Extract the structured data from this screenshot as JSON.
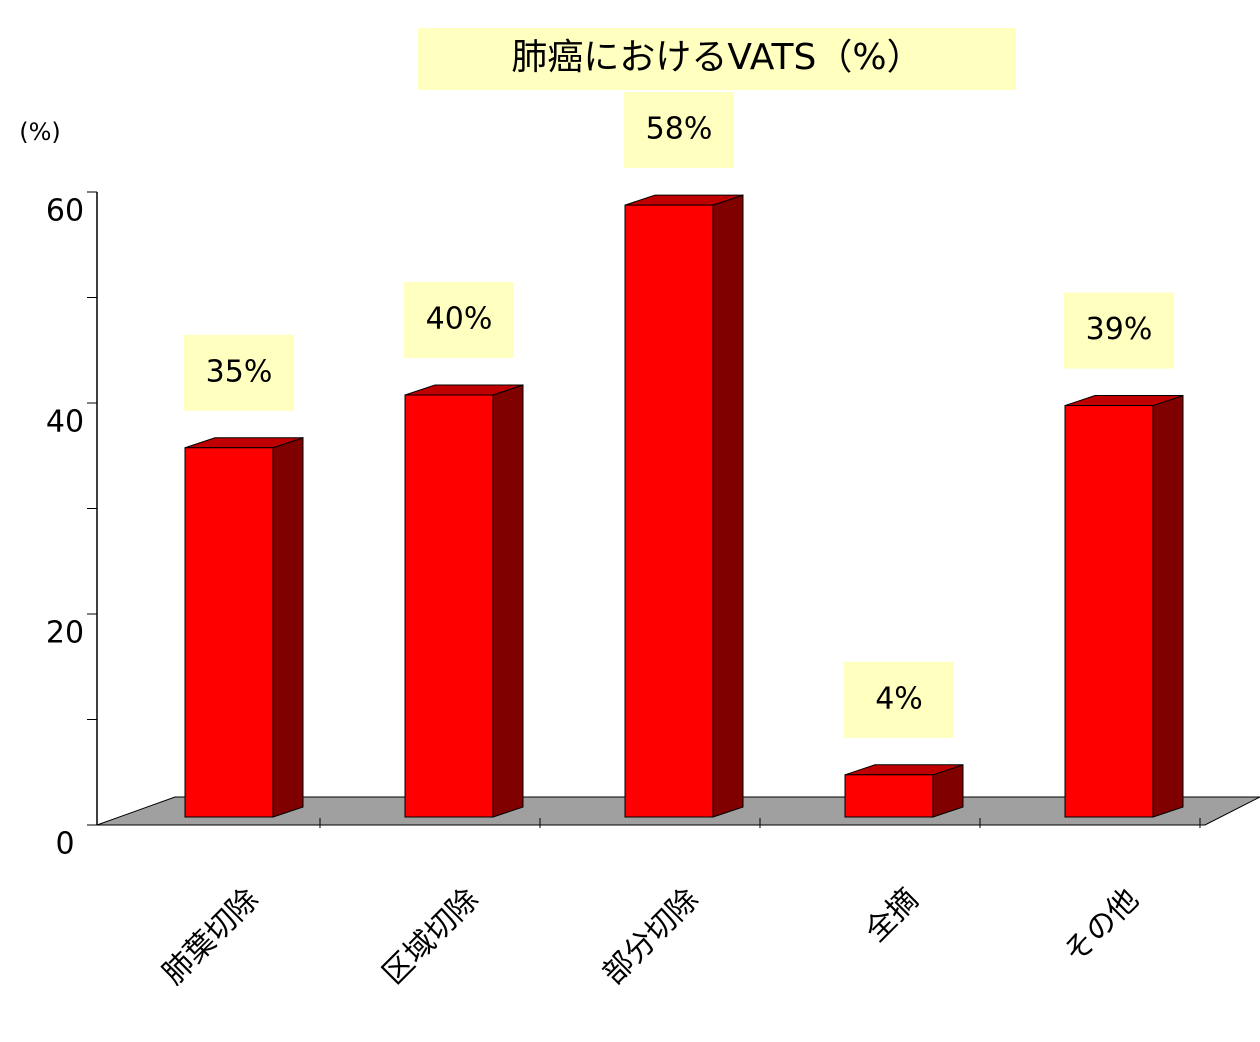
{
  "chart_data": {
    "type": "bar3d",
    "title": "肺癌におけるVATS（%）",
    "y_label": "(%)",
    "categories": [
      "肺葉切除",
      "区域切除",
      "部分切除",
      "全摘",
      "その他"
    ],
    "values": [
      35,
      40,
      58,
      4,
      39
    ],
    "value_labels": [
      "35%",
      "40%",
      "58%",
      "4%",
      "39%"
    ],
    "color": "#ff0000",
    "ylim": [
      0,
      60
    ],
    "yticks": [
      0,
      20,
      40,
      60
    ],
    "minor_yticks": [
      10,
      30,
      50
    ]
  }
}
